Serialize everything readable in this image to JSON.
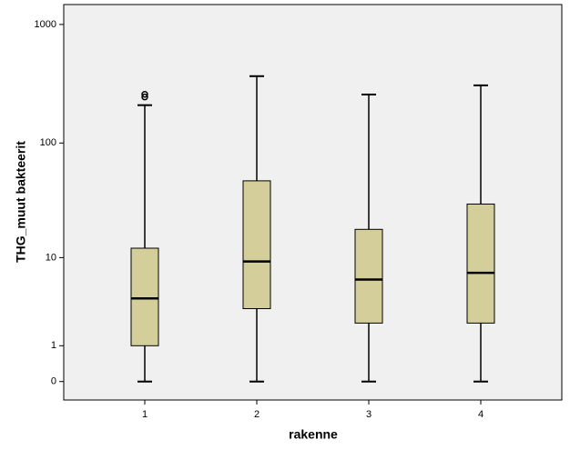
{
  "chart_data": {
    "type": "box",
    "x_label": "rakenne",
    "y_label": "THG_muut bakteerit",
    "categories": [
      "1",
      "2",
      "3",
      "4"
    ],
    "yscale": "log1p",
    "ylim": [
      -0.3,
      1470
    ],
    "yticks": [
      0,
      1,
      10,
      100,
      1000
    ],
    "color": "#d4cf9a",
    "background": "#f0f0f0",
    "boxes": [
      {
        "min": 0,
        "q1": 1.0,
        "median": 4.0,
        "q3": 12.2,
        "max": 209,
        "outliers": [
          245,
          258
        ]
      },
      {
        "min": 0,
        "q1": 3.1,
        "median": 9.2,
        "q3": 47.6,
        "max": 367,
        "outliers": []
      },
      {
        "min": 0,
        "q1": 2.1,
        "median": 6.2,
        "q3": 18,
        "max": 257,
        "outliers": []
      },
      {
        "min": 0,
        "q1": 2.1,
        "median": 7.2,
        "q3": 30,
        "max": 307,
        "outliers": []
      }
    ]
  }
}
